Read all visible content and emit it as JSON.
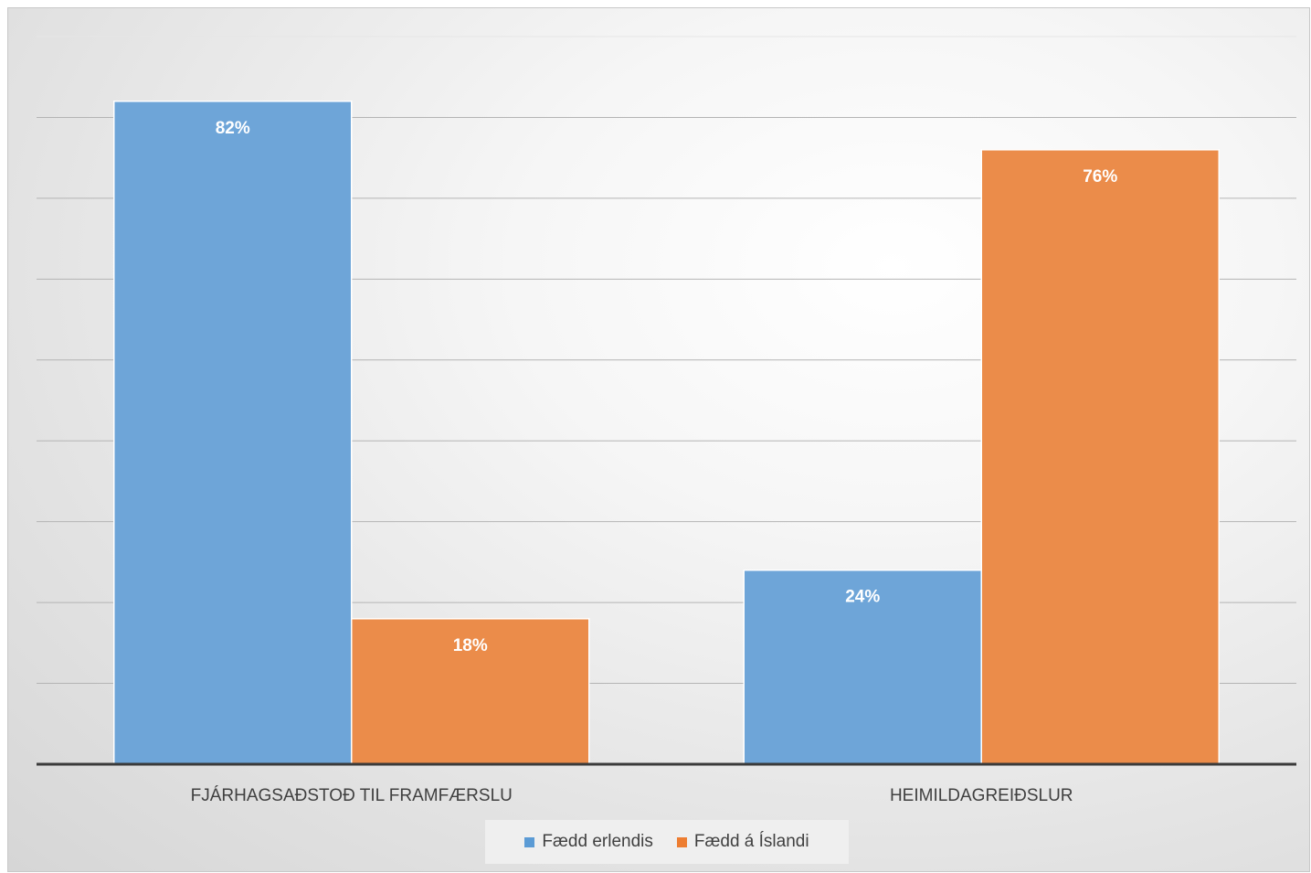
{
  "chart_data": {
    "type": "bar",
    "categories": [
      "FJÁRHAGSAÐSTOÐ TIL FRAMFÆRSLU",
      "HEIMILDAGREIÐSLUR"
    ],
    "series": [
      {
        "name": "Fædd erlendis",
        "values": [
          82,
          24
        ],
        "labels": [
          "82%",
          "24%"
        ],
        "color": "#6ea5d8"
      },
      {
        "name": "Fædd á Íslandi",
        "values": [
          18,
          76
        ],
        "labels": [
          "18%",
          "76%"
        ],
        "color": "#eb8c4a"
      }
    ],
    "ylim": [
      0,
      90
    ],
    "grid": true,
    "legend_position": "bottom"
  },
  "legend": {
    "items": [
      {
        "label": "Fædd erlendis",
        "color": "#5b9bd5"
      },
      {
        "label": "Fædd á Íslandi",
        "color": "#ed7d31"
      }
    ]
  }
}
